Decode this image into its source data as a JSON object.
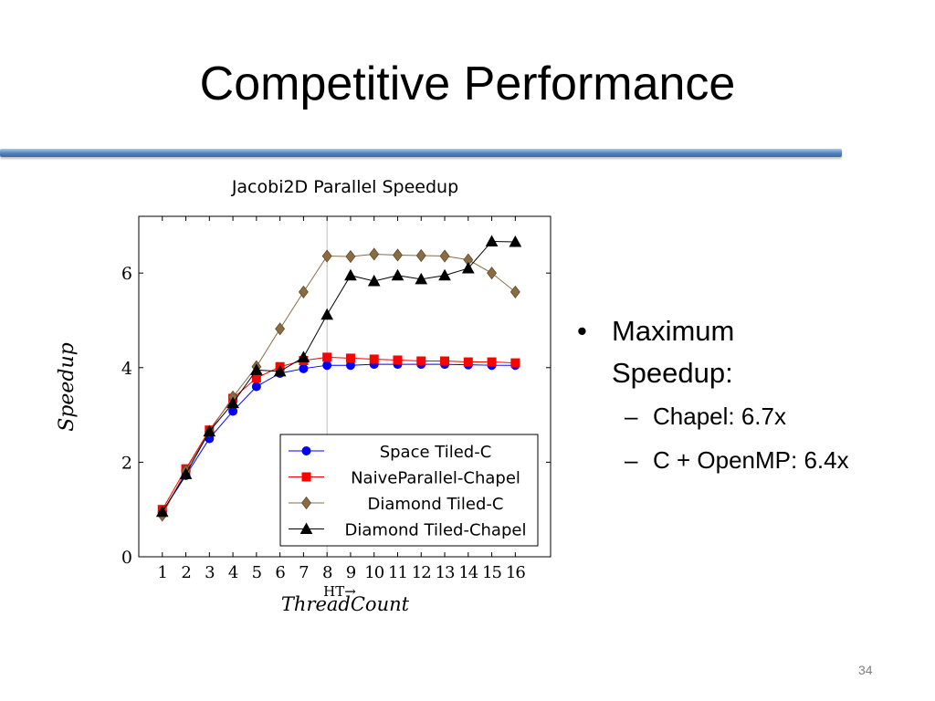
{
  "slide": {
    "title": "Competitive Performance",
    "page_number": "34"
  },
  "bullets": {
    "main": "Maximum Speedup:",
    "main_lines": [
      "Maximum",
      "Speedup:"
    ],
    "subs": [
      "Chapel: 6.7x",
      "C + OpenMP: 6.4x"
    ]
  },
  "chart_data": {
    "type": "line",
    "title": "Jacobi2D Parallel Speedup",
    "xlabel": "ThreadCount",
    "ylabel": "Speedup",
    "x": [
      1,
      2,
      3,
      4,
      5,
      6,
      7,
      8,
      9,
      10,
      11,
      12,
      13,
      14,
      15,
      16
    ],
    "xlim": [
      0,
      17.5
    ],
    "ylim": [
      0,
      7.2
    ],
    "yticks": [
      0,
      2,
      4,
      6
    ],
    "grid": false,
    "annotation": {
      "text": "HT→",
      "x": 8,
      "note": "vertical marker line"
    },
    "legend_position": "bottom-right",
    "series": [
      {
        "name": "Space Tiled-C",
        "color": "#0000ff",
        "marker": "circle",
        "values": [
          0.95,
          1.72,
          2.5,
          3.08,
          3.6,
          3.88,
          3.98,
          4.05,
          4.05,
          4.07,
          4.07,
          4.07,
          4.07,
          4.06,
          4.05,
          4.05
        ]
      },
      {
        "name": "NaiveParallel-Chapel",
        "color": "#ff0000",
        "marker": "square",
        "values": [
          1.0,
          1.86,
          2.68,
          3.35,
          3.78,
          4.02,
          4.15,
          4.22,
          4.2,
          4.18,
          4.16,
          4.14,
          4.14,
          4.12,
          4.12,
          4.1
        ]
      },
      {
        "name": "Diamond Tiled-C",
        "color": "#8b6c42",
        "marker": "diamond",
        "values": [
          0.88,
          1.82,
          2.65,
          3.38,
          4.02,
          4.82,
          5.6,
          6.36,
          6.35,
          6.4,
          6.38,
          6.37,
          6.36,
          6.28,
          6.0,
          5.6
        ]
      },
      {
        "name": "Diamond Tiled-Chapel",
        "color": "#000000",
        "marker": "triangle",
        "values": [
          0.95,
          1.75,
          2.65,
          3.25,
          3.95,
          3.92,
          4.22,
          5.12,
          5.95,
          5.83,
          5.95,
          5.87,
          5.95,
          6.1,
          6.67,
          6.66
        ]
      }
    ]
  }
}
